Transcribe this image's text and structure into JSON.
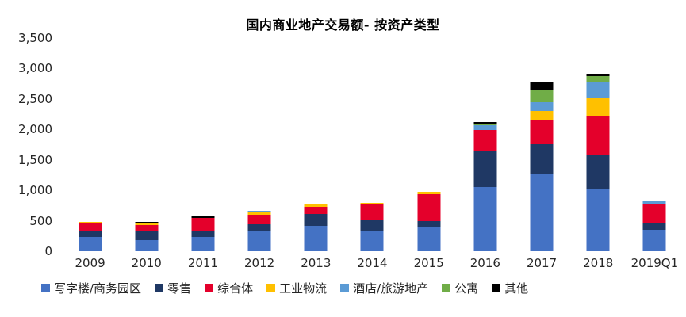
{
  "chart_data": {
    "type": "bar",
    "stacked": true,
    "title": "国内商业地产交易额- 按资产类型",
    "categories": [
      "2009",
      "2010",
      "2011",
      "2012",
      "2013",
      "2014",
      "2015",
      "2016",
      "2017",
      "2018",
      "2019Q1"
    ],
    "series": [
      {
        "name": "写字楼/商务园区",
        "color": "#4472C4",
        "values": [
          230,
          180,
          230,
          330,
          420,
          330,
          395,
          1050,
          1260,
          1020,
          350
        ]
      },
      {
        "name": "零售",
        "color": "#1F3864",
        "values": [
          100,
          150,
          100,
          110,
          195,
          195,
          95,
          590,
          495,
          555,
          120
        ]
      },
      {
        "name": "综合体",
        "color": "#E4002B",
        "values": [
          120,
          95,
          215,
          155,
          120,
          240,
          450,
          350,
          395,
          640,
          300
        ]
      },
      {
        "name": "工业物流",
        "color": "#FFC000",
        "values": [
          30,
          30,
          0,
          40,
          35,
          30,
          35,
          0,
          150,
          300,
          0
        ]
      },
      {
        "name": "酒店/旅游地产",
        "color": "#5B9BD5",
        "values": [
          0,
          0,
          0,
          25,
          0,
          0,
          0,
          75,
          150,
          255,
          55
        ]
      },
      {
        "name": "公寓",
        "color": "#70AD47",
        "values": [
          0,
          0,
          0,
          0,
          0,
          0,
          0,
          25,
          195,
          105,
          0
        ]
      },
      {
        "name": "其他",
        "color": "#000000",
        "values": [
          0,
          25,
          30,
          0,
          0,
          0,
          0,
          30,
          130,
          45,
          0
        ]
      }
    ],
    "xlabel": "",
    "ylabel": "",
    "ylim": [
      0,
      3500
    ],
    "ytick_interval": 500,
    "ytick_labels": [
      "0",
      "500",
      "1,000",
      "1,500",
      "2,000",
      "2,500",
      "3,000",
      "3,500"
    ],
    "grid": false,
    "legend_position": "bottom",
    "background_color": "#FFFFFF",
    "text_color": "#262626"
  }
}
